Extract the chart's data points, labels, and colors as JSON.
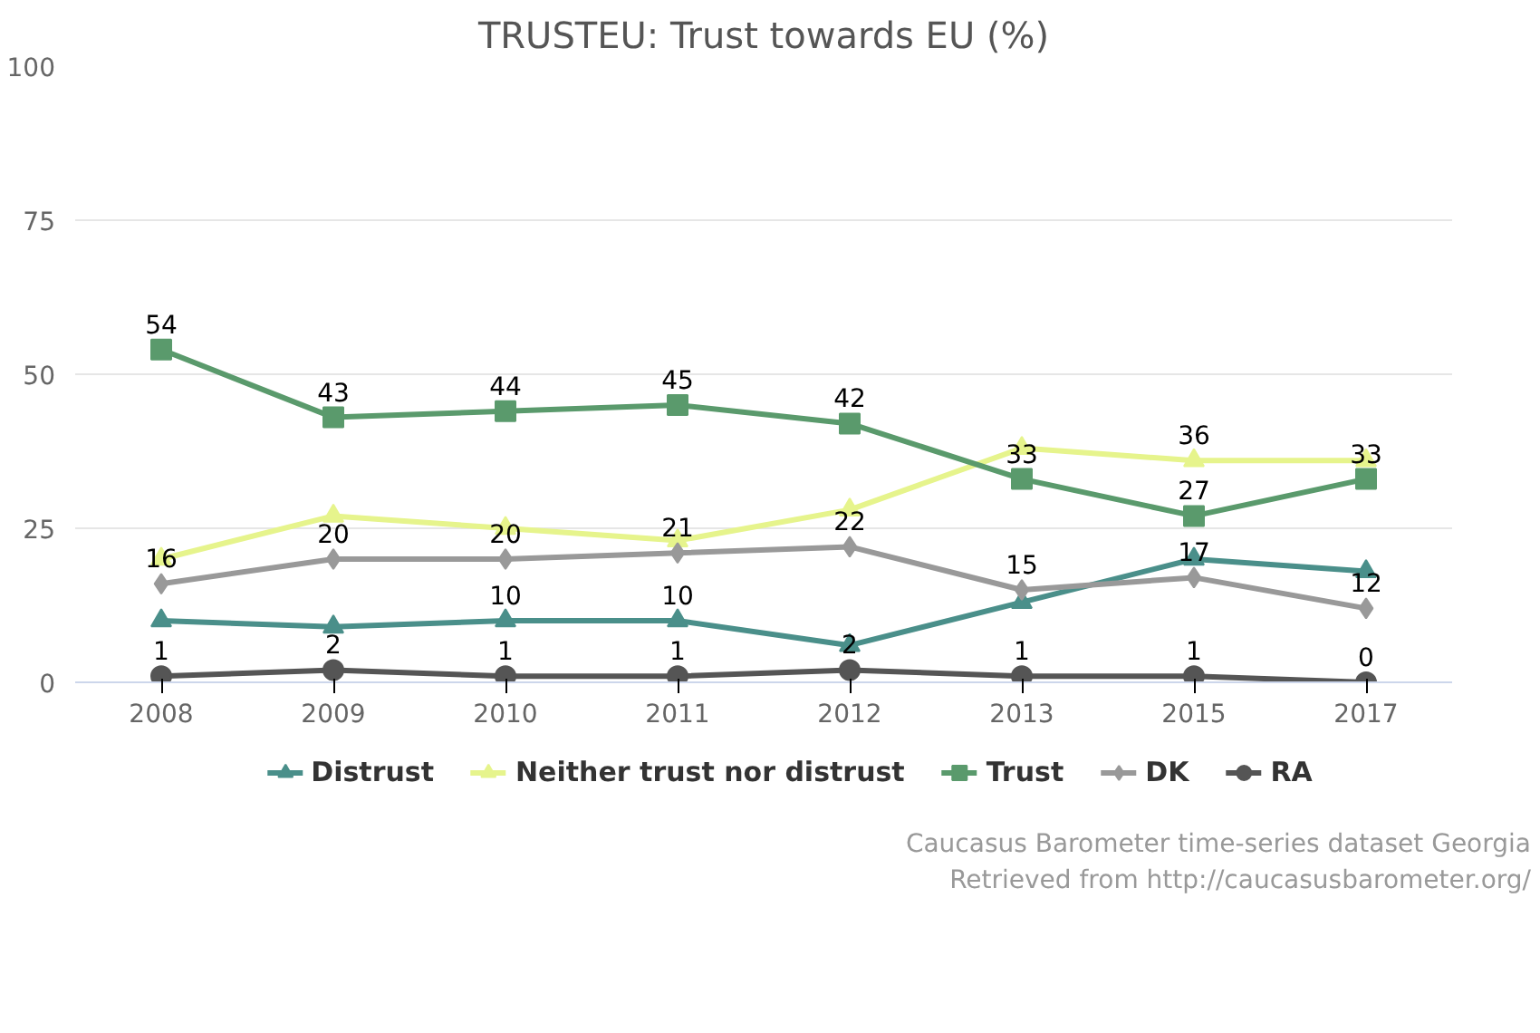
{
  "chart_data": {
    "type": "line",
    "title": "TRUSTEU: Trust towards EU (%)",
    "categories": [
      "2008",
      "2009",
      "2010",
      "2011",
      "2012",
      "2013",
      "2015",
      "2017"
    ],
    "series": [
      {
        "name": "Distrust",
        "color": "#4a8f8a",
        "marker": "triangle",
        "values": [
          10,
          9,
          10,
          10,
          6,
          13,
          20,
          18
        ],
        "value_labels": [
          null,
          null,
          "10",
          "10",
          null,
          null,
          null,
          null
        ]
      },
      {
        "name": "Neither trust nor distrust",
        "color": "#e6f48c",
        "marker": "triangle",
        "values": [
          20,
          27,
          25,
          23,
          28,
          38,
          36,
          36
        ],
        "value_labels": [
          null,
          null,
          null,
          null,
          null,
          null,
          "36",
          null
        ]
      },
      {
        "name": "Trust",
        "color": "#5a9a6c",
        "marker": "square",
        "values": [
          54,
          43,
          44,
          45,
          42,
          33,
          27,
          33
        ],
        "value_labels": [
          "54",
          "43",
          "44",
          "45",
          "42",
          "33",
          "27",
          "33"
        ]
      },
      {
        "name": "DK",
        "color": "#999999",
        "marker": "diamond",
        "values": [
          16,
          20,
          20,
          21,
          22,
          15,
          17,
          12
        ],
        "value_labels": [
          "16",
          "20",
          "20",
          "21",
          "22",
          "15",
          "17",
          "12"
        ]
      },
      {
        "name": "RA",
        "color": "#555555",
        "marker": "circle",
        "values": [
          1,
          2,
          1,
          1,
          2,
          1,
          1,
          0
        ],
        "value_labels": [
          "1",
          "2",
          "1",
          "1",
          "2",
          "1",
          "1",
          "0"
        ]
      }
    ],
    "ylim": [
      0,
      100
    ],
    "yticks": [
      0,
      25,
      50,
      75,
      100
    ],
    "grid": "y",
    "legend": "bottom",
    "annotations": [
      "Caucasus Barometer time-series dataset Georgia",
      "Retrieved from http://caucasusbarometer.org/"
    ]
  }
}
